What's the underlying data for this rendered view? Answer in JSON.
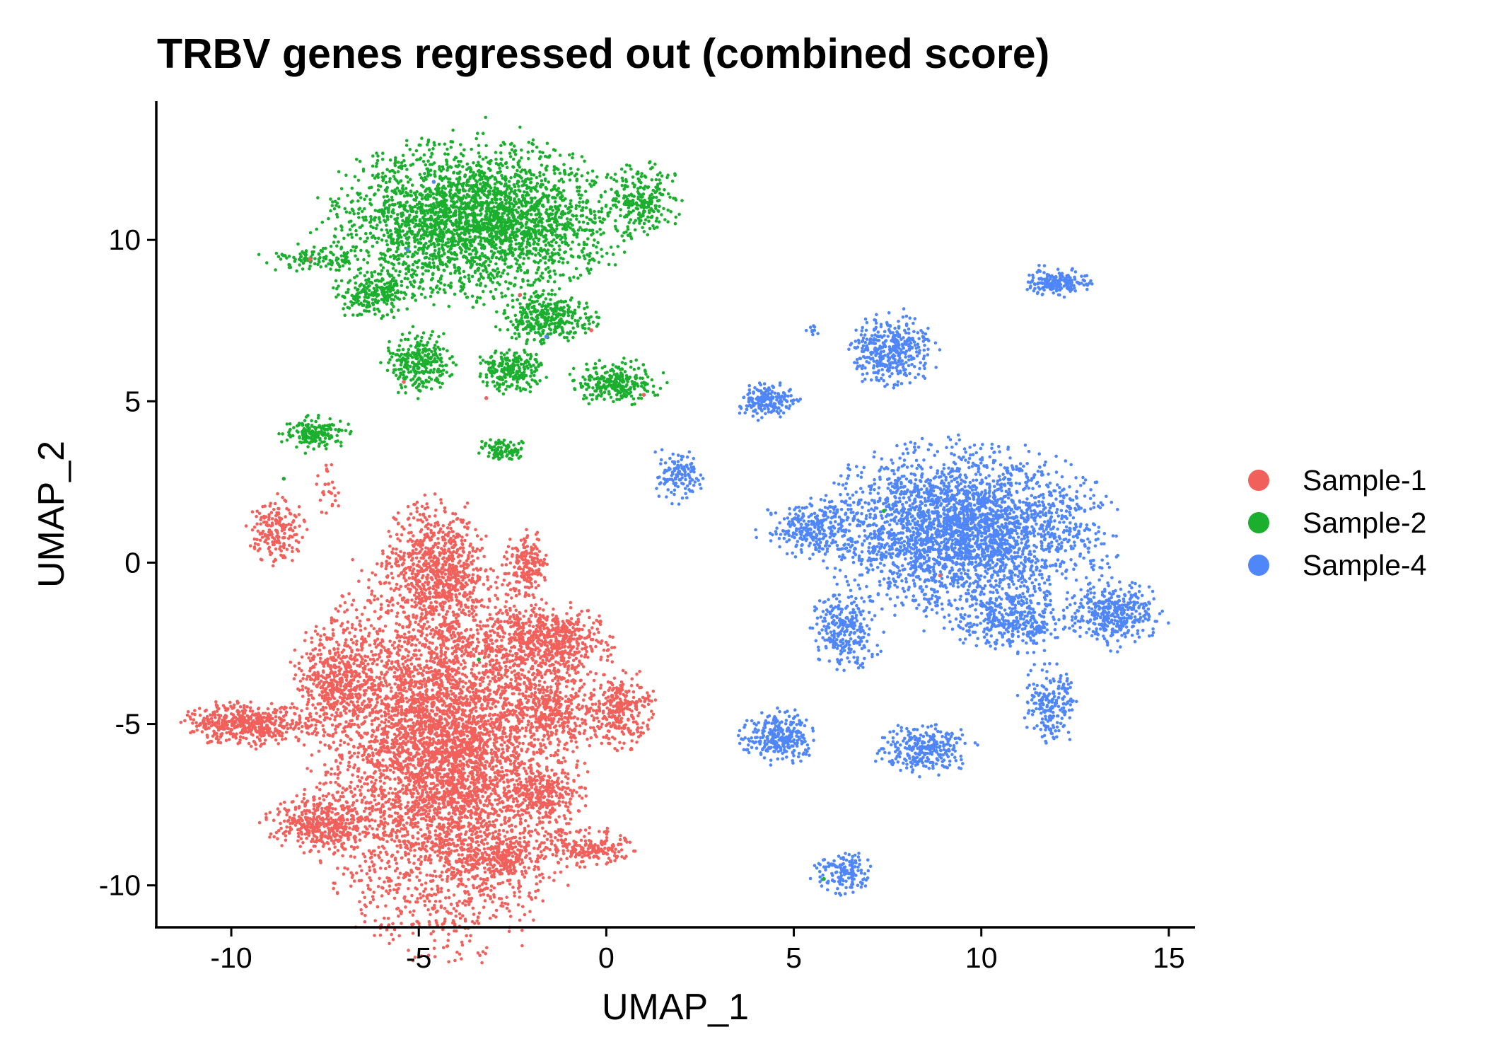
{
  "chart_data": {
    "type": "scatter",
    "title": "TRBV genes regressed out (combined score)",
    "xlabel": "UMAP_1",
    "ylabel": "UMAP_2",
    "xlim": [
      -12,
      15.7
    ],
    "ylim": [
      -11.3,
      14.3
    ],
    "xticks": [
      -10,
      -5,
      0,
      5,
      10,
      15
    ],
    "yticks": [
      -10,
      -5,
      0,
      5,
      10
    ],
    "xtick_labels": [
      "-10",
      "-5",
      "0",
      "5",
      "10",
      "15"
    ],
    "ytick_labels": [
      "-10",
      "-5",
      "0",
      "5",
      "10"
    ],
    "grid": false,
    "legend_position": "right",
    "series": [
      {
        "name": "Sample-1",
        "color": "#F2605C",
        "clusters": [
          {
            "x": -4.3,
            "y": -5.8,
            "sx": 1.5,
            "sy": 2.6,
            "n": 5200
          },
          {
            "x": -4.5,
            "y": -0.2,
            "sx": 0.65,
            "sy": 0.95,
            "n": 700
          },
          {
            "x": -2.1,
            "y": -0.05,
            "sx": 0.25,
            "sy": 0.45,
            "n": 180
          },
          {
            "x": -1.5,
            "y": -2.4,
            "sx": 0.75,
            "sy": 0.5,
            "n": 550
          },
          {
            "x": -1.5,
            "y": -4.5,
            "sx": 0.6,
            "sy": 0.6,
            "n": 350
          },
          {
            "x": -1.6,
            "y": -7.2,
            "sx": 0.45,
            "sy": 0.35,
            "n": 200
          },
          {
            "x": 0.4,
            "y": -4.6,
            "sx": 0.4,
            "sy": 0.55,
            "n": 280
          },
          {
            "x": -0.5,
            "y": -8.85,
            "sx": 0.55,
            "sy": 0.25,
            "n": 200
          },
          {
            "x": -2.8,
            "y": -9.2,
            "sx": 0.6,
            "sy": 0.3,
            "n": 200
          },
          {
            "x": -7.2,
            "y": -3.6,
            "sx": 0.5,
            "sy": 0.8,
            "n": 450
          },
          {
            "x": -9.5,
            "y": -5.0,
            "sx": 0.8,
            "sy": 0.3,
            "n": 480
          },
          {
            "x": -7.7,
            "y": -8.1,
            "sx": 0.6,
            "sy": 0.4,
            "n": 380
          },
          {
            "x": -8.8,
            "y": 1.0,
            "sx": 0.35,
            "sy": 0.45,
            "n": 180
          },
          {
            "x": -7.4,
            "y": 2.3,
            "sx": 0.15,
            "sy": 0.4,
            "n": 30
          }
        ]
      },
      {
        "name": "Sample-2",
        "color": "#1BAF2E",
        "clusters": [
          {
            "x": -3.5,
            "y": 10.6,
            "sx": 1.7,
            "sy": 1.05,
            "n": 2800
          },
          {
            "x": -6.2,
            "y": 8.3,
            "sx": 0.45,
            "sy": 0.35,
            "n": 230
          },
          {
            "x": -7.9,
            "y": 9.4,
            "sx": 0.55,
            "sy": 0.2,
            "n": 110
          },
          {
            "x": 0.95,
            "y": 11.3,
            "sx": 0.45,
            "sy": 0.5,
            "n": 230
          },
          {
            "x": -1.6,
            "y": 7.6,
            "sx": 0.55,
            "sy": 0.35,
            "n": 320
          },
          {
            "x": -5.0,
            "y": 6.2,
            "sx": 0.4,
            "sy": 0.45,
            "n": 280
          },
          {
            "x": -2.5,
            "y": 5.95,
            "sx": 0.4,
            "sy": 0.3,
            "n": 220
          },
          {
            "x": 0.2,
            "y": 5.6,
            "sx": 0.55,
            "sy": 0.3,
            "n": 260
          },
          {
            "x": -7.8,
            "y": 4.0,
            "sx": 0.4,
            "sy": 0.25,
            "n": 170
          },
          {
            "x": -2.8,
            "y": 3.5,
            "sx": 0.3,
            "sy": 0.15,
            "n": 90
          }
        ]
      },
      {
        "name": "Sample-4",
        "color": "#4F86FA",
        "clusters": [
          {
            "x": 9.5,
            "y": 1.0,
            "sx": 1.65,
            "sy": 1.15,
            "n": 2900
          },
          {
            "x": 11.0,
            "y": -1.8,
            "sx": 0.8,
            "sy": 0.4,
            "n": 350
          },
          {
            "x": 13.6,
            "y": -1.6,
            "sx": 0.55,
            "sy": 0.45,
            "n": 350
          },
          {
            "x": 12.0,
            "y": 8.7,
            "sx": 0.4,
            "sy": 0.2,
            "n": 180
          },
          {
            "x": 7.6,
            "y": 6.5,
            "sx": 0.5,
            "sy": 0.5,
            "n": 380
          },
          {
            "x": 5.5,
            "y": 7.2,
            "sx": 0.15,
            "sy": 0.1,
            "n": 10
          },
          {
            "x": 4.3,
            "y": 5.0,
            "sx": 0.35,
            "sy": 0.25,
            "n": 180
          },
          {
            "x": 1.9,
            "y": 2.7,
            "sx": 0.3,
            "sy": 0.35,
            "n": 130
          },
          {
            "x": 5.4,
            "y": 1.0,
            "sx": 0.55,
            "sy": 0.4,
            "n": 230
          },
          {
            "x": 6.4,
            "y": -2.1,
            "sx": 0.4,
            "sy": 0.55,
            "n": 270
          },
          {
            "x": 4.6,
            "y": -5.4,
            "sx": 0.45,
            "sy": 0.35,
            "n": 280
          },
          {
            "x": 8.5,
            "y": -5.8,
            "sx": 0.55,
            "sy": 0.35,
            "n": 280
          },
          {
            "x": 11.8,
            "y": -4.4,
            "sx": 0.35,
            "sy": 0.55,
            "n": 200
          },
          {
            "x": 6.3,
            "y": -9.6,
            "sx": 0.35,
            "sy": 0.3,
            "n": 140
          }
        ]
      }
    ],
    "stray_points": [
      {
        "series": "Sample-1",
        "x": -7.9,
        "y": 9.4
      },
      {
        "series": "Sample-1",
        "x": -5.4,
        "y": 5.6
      },
      {
        "series": "Sample-1",
        "x": -3.2,
        "y": 5.1
      },
      {
        "series": "Sample-1",
        "x": 1.0,
        "y": 5.2
      },
      {
        "series": "Sample-1",
        "x": -0.4,
        "y": 7.2
      },
      {
        "series": "Sample-1",
        "x": -2.3,
        "y": 8.3
      },
      {
        "series": "Sample-1",
        "x": 8.9,
        "y": -0.4
      },
      {
        "series": "Sample-2",
        "x": -3.4,
        "y": -3.0
      },
      {
        "series": "Sample-2",
        "x": 5.8,
        "y": -9.8
      },
      {
        "series": "Sample-2",
        "x": 7.4,
        "y": 1.6
      },
      {
        "series": "Sample-2",
        "x": -8.6,
        "y": 2.6
      },
      {
        "series": "Sample-4",
        "x": -5.3,
        "y": 9.7
      },
      {
        "series": "Sample-4",
        "x": -4.6,
        "y": 11.8
      },
      {
        "series": "Sample-4",
        "x": -1.6,
        "y": 7.0
      }
    ]
  }
}
